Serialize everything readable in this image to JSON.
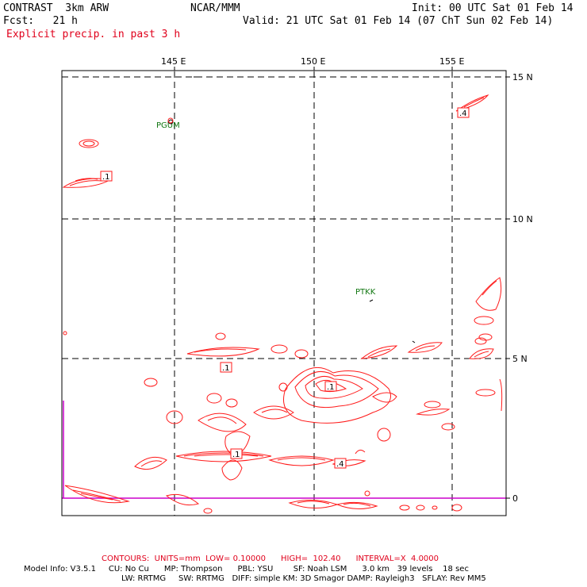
{
  "header": {
    "model": "CONTRAST  3km ARW",
    "forecast": "Fcst:   21 h",
    "org": "NCAR/MMM",
    "init": "Init: 00 UTC Sat 01 Feb 14",
    "valid": "Valid: 21 UTC Sat 01 Feb 14 (07 ChT Sun 02 Feb 14)",
    "field": "Explicit precip. in past 3 h"
  },
  "map": {
    "lon_labels": [
      "145 E",
      "150 E",
      "155 E"
    ],
    "lat_labels": [
      "15 N",
      "10 N",
      "5 N",
      "0"
    ],
    "stations": [
      {
        "name": "PGUM",
        "color": "#117711"
      },
      {
        "name": "PTKK",
        "color": "#117711"
      }
    ],
    "contour_labels": [
      ".1",
      ".4",
      ".1",
      ".1",
      ".1",
      ".4"
    ],
    "colors": {
      "contour": "#ff1a1a",
      "equator": "#cc00cc",
      "grid": "#000000"
    }
  },
  "footer": {
    "contours": "CONTOURS:  UNITS=mm  LOW= 0.10000      HIGH=  102.40      INTERVAL=X  4.0000",
    "info1": "Model Info: V3.5.1     CU: No Cu      MP: Thompson      PBL: YSU        SF: Noah LSM      3.0 km   39 levels    18 sec",
    "info2": "LW: RRTMG     SW: RRTMG   DIFF: simple KM: 3D Smagor DAMP: Rayleigh3   SFLAY: Rev MM5"
  }
}
